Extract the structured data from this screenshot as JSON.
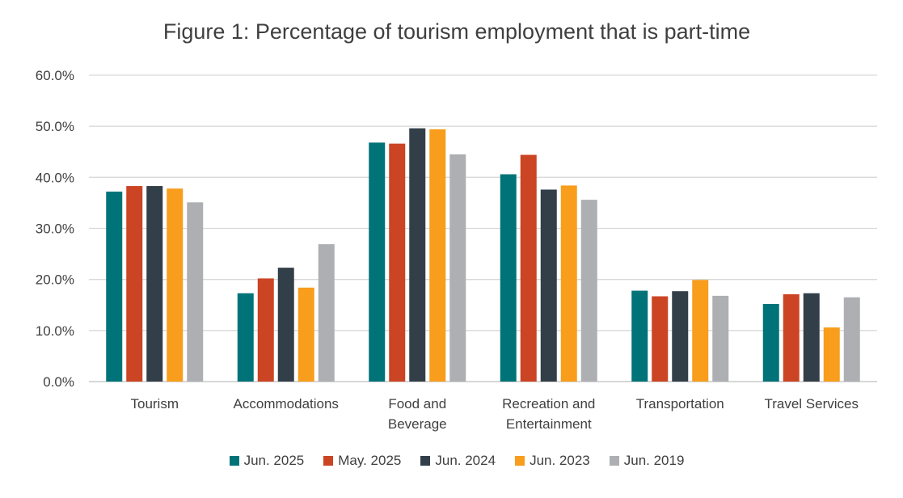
{
  "chart_data": {
    "type": "bar",
    "title": "Figure 1: Percentage of tourism employment that is part-time",
    "categories": [
      [
        "Tourism"
      ],
      [
        "Accommodations"
      ],
      [
        "Food and",
        "Beverage"
      ],
      [
        "Recreation and",
        "Entertainment"
      ],
      [
        "Transportation"
      ],
      [
        "Travel Services"
      ]
    ],
    "series": [
      {
        "name": "Jun. 2025",
        "color": "#007378",
        "values": [
          37.2,
          17.3,
          46.8,
          40.6,
          17.8,
          15.2
        ]
      },
      {
        "name": "May. 2025",
        "color": "#cb4423",
        "values": [
          38.3,
          20.2,
          46.6,
          44.4,
          16.7,
          17.1
        ]
      },
      {
        "name": "Jun. 2024",
        "color": "#333f48",
        "values": [
          38.3,
          22.3,
          49.6,
          37.6,
          17.7,
          17.3
        ]
      },
      {
        "name": "Jun. 2023",
        "color": "#f89d1c",
        "values": [
          37.8,
          18.4,
          49.4,
          38.4,
          19.9,
          10.6
        ]
      },
      {
        "name": "Jun. 2019",
        "color": "#adafb2",
        "values": [
          35.1,
          26.9,
          44.5,
          35.6,
          16.8,
          16.5
        ]
      }
    ],
    "ylim": [
      0,
      60
    ],
    "yticks": [
      0,
      10,
      20,
      30,
      40,
      50,
      60
    ],
    "ytick_labels": [
      "0.0%",
      "10.0%",
      "20.0%",
      "30.0%",
      "40.0%",
      "50.0%",
      "60.0%"
    ],
    "grid": true,
    "legend_position": "bottom"
  }
}
